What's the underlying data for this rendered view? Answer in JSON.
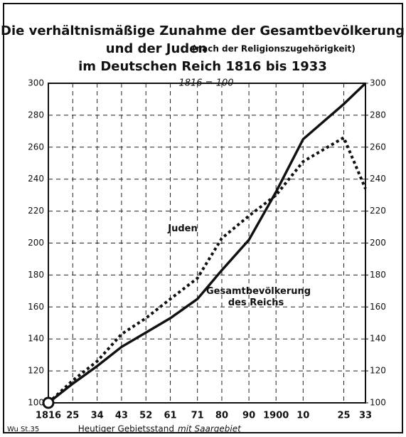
{
  "chart_data": {
    "type": "line",
    "title": [
      "Die verhältnismäßige Zunahme der Gesamtbevölkerung",
      "und der Juden",
      "(nach der Religionszugehörigkeit)",
      "im Deutschen Reich 1816 bis 1933"
    ],
    "annotation": "1816 = 100",
    "x": [
      1816,
      1825,
      1834,
      1843,
      1852,
      1861,
      1871,
      1880,
      1890,
      1900,
      1910,
      1925,
      1933
    ],
    "series": [
      {
        "name": "Gesamtbevölkerung des Reichs",
        "color": "#111111",
        "style": "solid",
        "values": [
          100,
          112,
          123,
          135,
          144,
          153,
          165,
          183,
          202,
          232,
          265,
          287,
          300
        ]
      },
      {
        "name": "Juden",
        "color": "#111111",
        "style": "dotted",
        "values": [
          100,
          114,
          126,
          143,
          153,
          165,
          178,
          203,
          217,
          230,
          251,
          266,
          234
        ]
      }
    ],
    "xlim": [
      1816,
      1933
    ],
    "xticks": [
      {
        "value": 1816,
        "label": "1816"
      },
      {
        "value": 1825,
        "label": "25"
      },
      {
        "value": 1834,
        "label": "34"
      },
      {
        "value": 1843,
        "label": "43"
      },
      {
        "value": 1852,
        "label": "52"
      },
      {
        "value": 1861,
        "label": "61"
      },
      {
        "value": 1871,
        "label": "71"
      },
      {
        "value": 1880,
        "label": "80"
      },
      {
        "value": 1890,
        "label": "90"
      },
      1900,
      {
        "value": 1910,
        "label": "10"
      },
      {
        "value": 1925,
        "label": "25"
      },
      {
        "value": 1933,
        "label": "33"
      }
    ],
    "ylim": [
      100,
      300
    ],
    "yticks": [
      100,
      120,
      140,
      160,
      180,
      200,
      220,
      240,
      260,
      280,
      300
    ],
    "y2lim": [
      100,
      300
    ],
    "y2ticks": [
      100,
      120,
      140,
      160,
      180,
      200,
      220,
      240,
      260,
      280,
      300
    ],
    "grid": true,
    "source": "Wu St.35",
    "footer": [
      "Heutiger Gebietsstand",
      "mit Saargebiet"
    ]
  }
}
